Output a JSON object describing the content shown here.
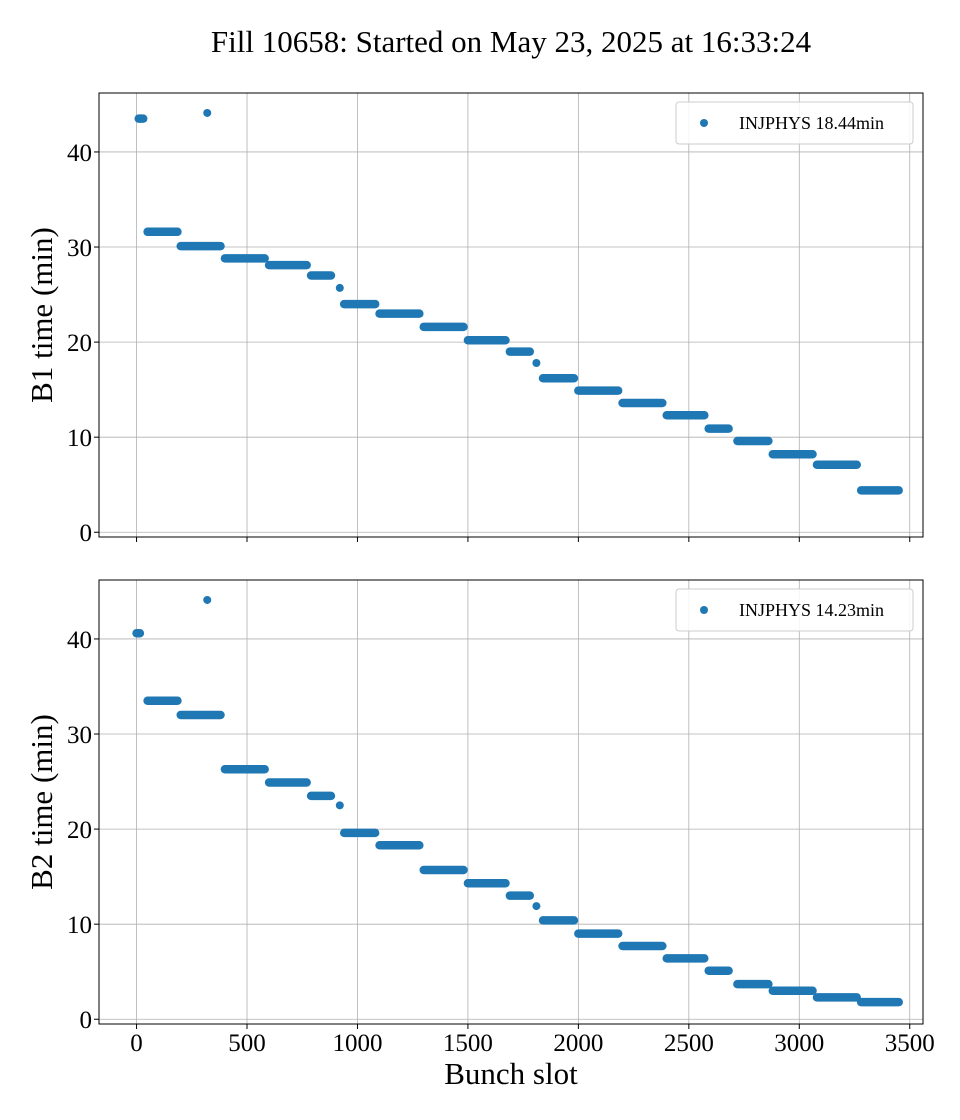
{
  "figure": {
    "title": "Fill 10658: Started on May 23, 2025 at 16:33:24",
    "xlabel": "Bunch slot"
  },
  "colors": {
    "series": "#1f77b4",
    "grid": "#b0b0b0",
    "axis": "#000000"
  },
  "chart_data": [
    {
      "type": "scatter",
      "title": "",
      "xlabel": "",
      "ylabel": "B1 time (min)",
      "xlim": [
        -170,
        3560
      ],
      "ylim": [
        -0.5,
        46.2
      ],
      "xticks": [
        0,
        500,
        1000,
        1500,
        2000,
        2500,
        3000,
        3500
      ],
      "xtick_labels": [
        "",
        "",
        "",
        "",
        "",
        "",
        "",
        ""
      ],
      "yticks": [
        0,
        10,
        20,
        30,
        40
      ],
      "ytick_labels": [
        "0",
        "10",
        "20",
        "30",
        "40"
      ],
      "grid": true,
      "legend_position": "top-right",
      "series": [
        {
          "name": "INJPHYS 18.44min",
          "segments": [
            {
              "x0": 10,
              "x1": 30,
              "y": 43.5
            },
            {
              "x0": 320,
              "x1": 320,
              "y": 44.1
            },
            {
              "x0": 50,
              "x1": 185,
              "y": 31.6
            },
            {
              "x0": 200,
              "x1": 380,
              "y": 30.1
            },
            {
              "x0": 400,
              "x1": 580,
              "y": 28.8
            },
            {
              "x0": 600,
              "x1": 770,
              "y": 28.1
            },
            {
              "x0": 790,
              "x1": 880,
              "y": 27.0
            },
            {
              "x0": 920,
              "x1": 920,
              "y": 25.7
            },
            {
              "x0": 940,
              "x1": 1080,
              "y": 24.0
            },
            {
              "x0": 1100,
              "x1": 1280,
              "y": 23.0
            },
            {
              "x0": 1300,
              "x1": 1480,
              "y": 21.6
            },
            {
              "x0": 1500,
              "x1": 1670,
              "y": 20.2
            },
            {
              "x0": 1690,
              "x1": 1780,
              "y": 19.0
            },
            {
              "x0": 1810,
              "x1": 1810,
              "y": 17.8
            },
            {
              "x0": 1840,
              "x1": 1980,
              "y": 16.2
            },
            {
              "x0": 2000,
              "x1": 2180,
              "y": 14.9
            },
            {
              "x0": 2200,
              "x1": 2380,
              "y": 13.6
            },
            {
              "x0": 2400,
              "x1": 2570,
              "y": 12.3
            },
            {
              "x0": 2590,
              "x1": 2680,
              "y": 10.9
            },
            {
              "x0": 2720,
              "x1": 2860,
              "y": 9.6
            },
            {
              "x0": 2880,
              "x1": 3060,
              "y": 8.2
            },
            {
              "x0": 3080,
              "x1": 3260,
              "y": 7.1
            },
            {
              "x0": 3280,
              "x1": 3450,
              "y": 4.4
            }
          ]
        }
      ]
    },
    {
      "type": "scatter",
      "title": "",
      "xlabel": "Bunch slot",
      "ylabel": "B2 time (min)",
      "xlim": [
        -170,
        3560
      ],
      "ylim": [
        -0.5,
        46.2
      ],
      "xticks": [
        0,
        500,
        1000,
        1500,
        2000,
        2500,
        3000,
        3500
      ],
      "xtick_labels": [
        "0",
        "500",
        "1000",
        "1500",
        "2000",
        "2500",
        "3000",
        "3500"
      ],
      "yticks": [
        0,
        10,
        20,
        30,
        40
      ],
      "ytick_labels": [
        "0",
        "10",
        "20",
        "30",
        "40"
      ],
      "grid": true,
      "legend_position": "top-right",
      "series": [
        {
          "name": "INJPHYS 14.23min",
          "segments": [
            {
              "x0": 0,
              "x1": 15,
              "y": 40.6
            },
            {
              "x0": 320,
              "x1": 320,
              "y": 44.1
            },
            {
              "x0": 50,
              "x1": 185,
              "y": 33.5
            },
            {
              "x0": 200,
              "x1": 380,
              "y": 32.0
            },
            {
              "x0": 400,
              "x1": 580,
              "y": 26.3
            },
            {
              "x0": 600,
              "x1": 770,
              "y": 24.9
            },
            {
              "x0": 790,
              "x1": 880,
              "y": 23.5
            },
            {
              "x0": 920,
              "x1": 920,
              "y": 22.5
            },
            {
              "x0": 940,
              "x1": 1080,
              "y": 19.6
            },
            {
              "x0": 1100,
              "x1": 1280,
              "y": 18.3
            },
            {
              "x0": 1300,
              "x1": 1480,
              "y": 15.7
            },
            {
              "x0": 1500,
              "x1": 1670,
              "y": 14.3
            },
            {
              "x0": 1690,
              "x1": 1780,
              "y": 13.0
            },
            {
              "x0": 1810,
              "x1": 1810,
              "y": 11.9
            },
            {
              "x0": 1840,
              "x1": 1980,
              "y": 10.4
            },
            {
              "x0": 2000,
              "x1": 2180,
              "y": 9.0
            },
            {
              "x0": 2200,
              "x1": 2380,
              "y": 7.7
            },
            {
              "x0": 2400,
              "x1": 2570,
              "y": 6.4
            },
            {
              "x0": 2590,
              "x1": 2680,
              "y": 5.1
            },
            {
              "x0": 2720,
              "x1": 2860,
              "y": 3.7
            },
            {
              "x0": 2880,
              "x1": 3060,
              "y": 3.0
            },
            {
              "x0": 3080,
              "x1": 3260,
              "y": 2.3
            },
            {
              "x0": 3280,
              "x1": 3450,
              "y": 1.8
            }
          ]
        }
      ]
    }
  ]
}
